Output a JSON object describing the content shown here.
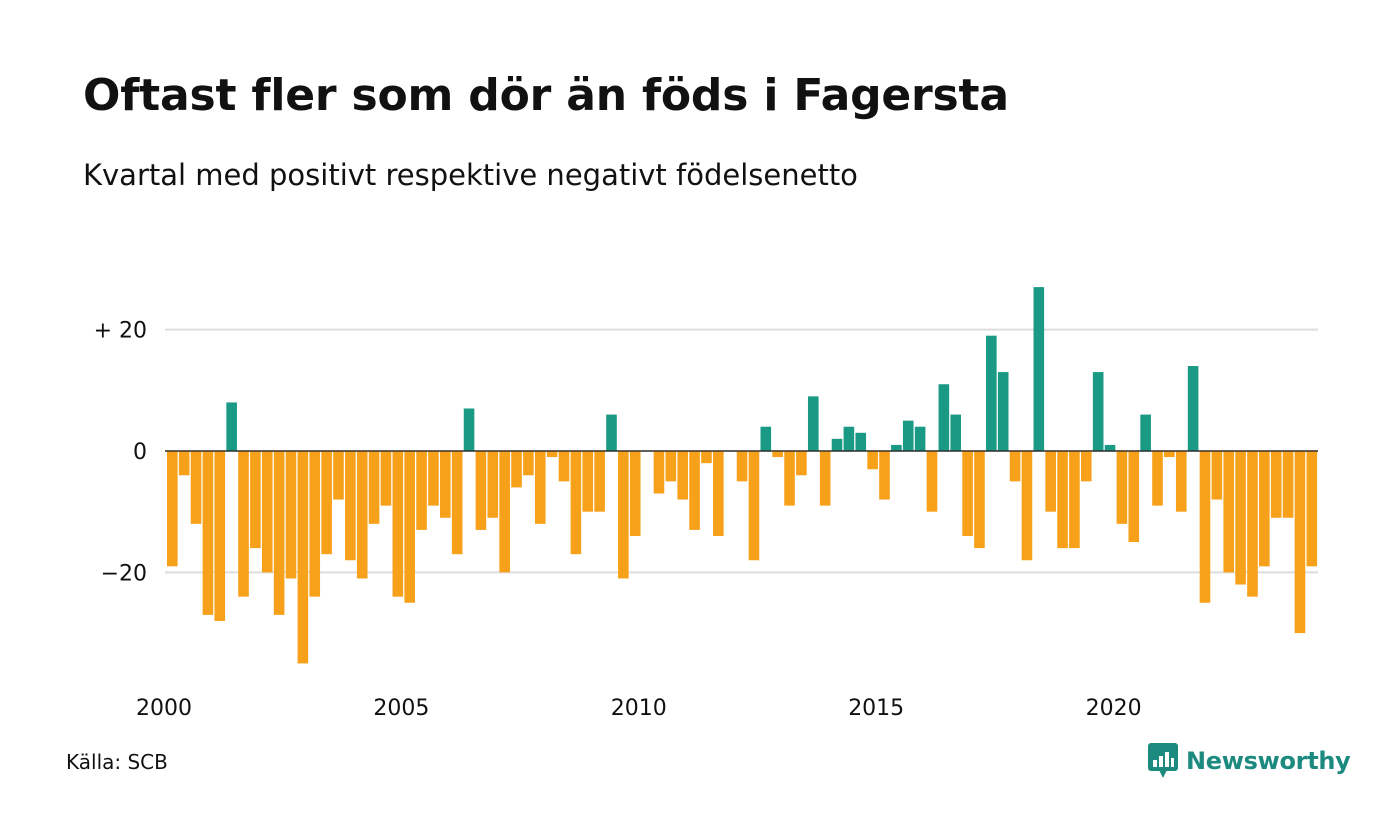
{
  "colors": {
    "positive": "#1a9985",
    "negative": "#f7a11b",
    "grid": "#dddddd",
    "logo": "#1d8a80"
  },
  "source": "Källa: SCB",
  "brand": {
    "name": "Newsworthy",
    "icon": "newsworthy-chat-bars-icon"
  },
  "chart_data": {
    "type": "bar",
    "title": "Oftast fler som dör än föds i Fagersta",
    "subtitle": "Kvartal med positivt respektive negativt födelsenetto",
    "xlabel": "",
    "ylabel": "",
    "x_start": 2000,
    "periods_per_year": 4,
    "x_ticks": [
      "2000",
      "2005",
      "2010",
      "2015",
      "2020"
    ],
    "y_ticks": [
      {
        "value": 20,
        "label": "+ 20"
      },
      {
        "value": 0,
        "label": "0"
      },
      {
        "value": -20,
        "label": "−20"
      }
    ],
    "ylim": [
      -38,
      30
    ],
    "grid": true,
    "values": [
      -19,
      -4,
      -12,
      -27,
      -28,
      8,
      -24,
      -16,
      -20,
      -27,
      -21,
      -35,
      -24,
      -17,
      -8,
      -18,
      -21,
      -12,
      -9,
      -24,
      -25,
      -13,
      -9,
      -11,
      -17,
      7,
      -13,
      -11,
      -20,
      -6,
      -4,
      -12,
      -1,
      -5,
      -17,
      -10,
      -10,
      6,
      -21,
      -14,
      0,
      -7,
      -5,
      -8,
      -13,
      -2,
      -14,
      0,
      -5,
      -18,
      4,
      -1,
      -9,
      -4,
      9,
      -9,
      2,
      4,
      3,
      -3,
      -8,
      1,
      5,
      4,
      -10,
      11,
      6,
      -14,
      -16,
      19,
      13,
      -5,
      -18,
      27,
      -10,
      -16,
      -16,
      -5,
      13,
      1,
      -12,
      -15,
      6,
      -9,
      -1,
      -10,
      14,
      -25,
      -8,
      -20,
      -22,
      -24,
      -19,
      -11,
      -11,
      -30,
      -19
    ]
  }
}
